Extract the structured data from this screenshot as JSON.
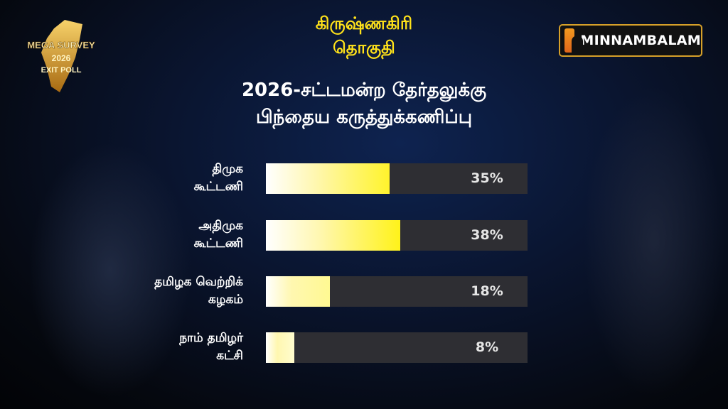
{
  "header": {
    "constituency": [
      "கிருஷ்ணகிரி",
      "தொகுதி"
    ],
    "subtitle": [
      "2026-சட்டமன்ற தேர்தலுக்கு",
      "பிந்தைய கருத்துக்கணிப்பு"
    ],
    "left_logo_text": "MEGA SURVEY 2026 EXIT POLL",
    "brand": "MINNAMBALAM"
  },
  "chart_data": {
    "type": "bar",
    "orientation": "horizontal",
    "categories": [
      [
        "திமுக",
        "கூட்டணி"
      ],
      [
        "அதிமுக",
        "கூட்டணி"
      ],
      [
        "தமிழக வெற்றிக்",
        "கழகம்"
      ],
      [
        "நாம் தமிழர்",
        "கட்சி"
      ]
    ],
    "values": [
      35,
      38,
      18,
      8
    ],
    "value_labels": [
      "35%",
      "38%",
      "18%",
      "8%"
    ],
    "unit": "%",
    "grid": false,
    "colors": {
      "fill_start": "#ffffff",
      "fill_end": "#fff21a",
      "track": "#2e2e33",
      "title": "#ffe21a"
    }
  }
}
